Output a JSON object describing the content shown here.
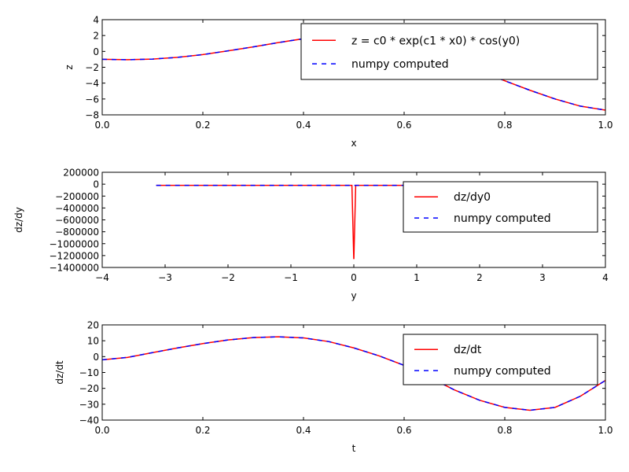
{
  "chart_data": [
    {
      "type": "line",
      "xlabel": "x",
      "ylabel": "z",
      "xlim": [
        0.0,
        1.0
      ],
      "ylim": [
        -8,
        4
      ],
      "xticks": [
        "0.0",
        "0.2",
        "0.4",
        "0.6",
        "0.8",
        "1.0"
      ],
      "yticks": [
        "4",
        "2",
        "0",
        "−2",
        "−4",
        "−6",
        "−8"
      ],
      "grid": false,
      "legend_position": "upper right",
      "series": [
        {
          "name": "z = c0 * exp(c1 * x0) * cos(y0)",
          "color": "#ff0000",
          "style": "solid",
          "x": [
            0.0,
            0.05,
            0.1,
            0.15,
            0.2,
            0.25,
            0.3,
            0.35,
            0.4,
            0.45,
            0.5,
            0.55,
            0.6,
            0.65,
            0.7,
            0.75,
            0.8,
            0.85,
            0.9,
            0.95,
            1.0
          ],
          "y": [
            -1.0,
            -1.05,
            -0.97,
            -0.75,
            -0.4,
            0.07,
            0.57,
            1.11,
            1.6,
            1.96,
            2.09,
            1.92,
            1.4,
            0.45,
            -0.9,
            -2.5,
            -3.7,
            -4.9,
            -6.0,
            -6.9,
            -7.4
          ]
        },
        {
          "name": "numpy computed",
          "color": "#0000ff",
          "style": "dashed",
          "x": [
            0.0,
            0.05,
            0.1,
            0.15,
            0.2,
            0.25,
            0.3,
            0.35,
            0.4,
            0.45,
            0.5,
            0.55,
            0.6,
            0.65,
            0.7,
            0.75,
            0.8,
            0.85,
            0.9,
            0.95,
            1.0
          ],
          "y": [
            -1.0,
            -1.05,
            -0.97,
            -0.75,
            -0.4,
            0.07,
            0.57,
            1.11,
            1.6,
            1.96,
            2.09,
            1.92,
            1.4,
            0.45,
            -0.9,
            -2.5,
            -3.7,
            -4.9,
            -6.0,
            -6.9,
            -7.4
          ]
        }
      ]
    },
    {
      "type": "line",
      "xlabel": "y",
      "ylabel": "dz/dy",
      "xlim": [
        -4,
        4
      ],
      "ylim": [
        -1400000,
        200000
      ],
      "xticks": [
        "−4",
        "−3",
        "−2",
        "−1",
        "0",
        "1",
        "2",
        "3",
        "4"
      ],
      "yticks": [
        "200000",
        "0",
        "−200000",
        "−400000",
        "−600000",
        "−800000",
        "−1000000",
        "−1200000",
        "−1400000"
      ],
      "grid": false,
      "legend_position": "upper right",
      "series": [
        {
          "name": "dz/dy0",
          "color": "#ff0000",
          "style": "solid",
          "x": [
            -3.1416,
            -2.0,
            -1.0,
            -0.03,
            -0.001,
            0.0,
            0.001,
            0.03,
            1.0,
            2.0,
            3.1416
          ],
          "y": [
            -20000,
            -20000,
            -20000,
            -20000,
            -1250000,
            -1250000,
            -1250000,
            -20000,
            -20000,
            -20000,
            -20000
          ]
        },
        {
          "name": "numpy computed",
          "color": "#0000ff",
          "style": "dashed",
          "x": [
            -3.1416,
            -2.0,
            -1.0,
            0.0,
            1.0,
            2.0,
            3.1416
          ],
          "y": [
            -20000,
            -20000,
            -20000,
            -20000,
            -20000,
            -20000,
            -20000
          ]
        }
      ]
    },
    {
      "type": "line",
      "xlabel": "t",
      "ylabel": "dz/dt",
      "xlim": [
        0.0,
        1.0
      ],
      "ylim": [
        -40,
        20
      ],
      "xticks": [
        "0.0",
        "0.2",
        "0.4",
        "0.6",
        "0.8",
        "1.0"
      ],
      "yticks": [
        "20",
        "10",
        "0",
        "−10",
        "−20",
        "−30",
        "−40"
      ],
      "grid": false,
      "legend_position": "upper right",
      "series": [
        {
          "name": "dz/dt",
          "color": "#ff0000",
          "style": "solid",
          "x": [
            0.0,
            0.05,
            0.1,
            0.15,
            0.2,
            0.25,
            0.3,
            0.35,
            0.4,
            0.45,
            0.5,
            0.55,
            0.6,
            0.65,
            0.7,
            0.75,
            0.8,
            0.85,
            0.9,
            0.95,
            1.0
          ],
          "y": [
            -2.0,
            -0.5,
            2.5,
            5.5,
            8.2,
            10.5,
            12.0,
            12.5,
            11.8,
            9.5,
            5.5,
            0.5,
            -5.5,
            -13.0,
            -21.0,
            -27.5,
            -32.0,
            -33.8,
            -32.0,
            -25.0,
            -15.0
          ]
        },
        {
          "name": "numpy computed",
          "color": "#0000ff",
          "style": "dashed",
          "x": [
            0.0,
            0.05,
            0.1,
            0.15,
            0.2,
            0.25,
            0.3,
            0.35,
            0.4,
            0.45,
            0.5,
            0.55,
            0.6,
            0.65,
            0.7,
            0.75,
            0.8,
            0.85,
            0.9,
            0.95,
            1.0
          ],
          "y": [
            -2.0,
            -0.5,
            2.5,
            5.5,
            8.2,
            10.5,
            12.0,
            12.5,
            11.8,
            9.5,
            5.5,
            0.5,
            -5.5,
            -13.0,
            -21.0,
            -27.5,
            -32.0,
            -33.8,
            -32.0,
            -25.0,
            -15.0
          ]
        }
      ]
    }
  ]
}
